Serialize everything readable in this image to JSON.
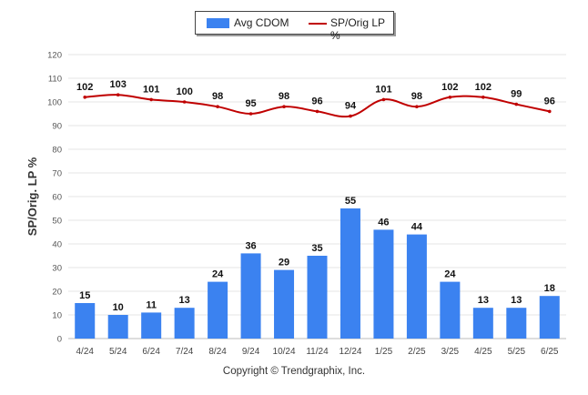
{
  "chart_data": {
    "type": "bar",
    "categories": [
      "4/24",
      "5/24",
      "6/24",
      "7/24",
      "8/24",
      "9/24",
      "10/24",
      "11/24",
      "12/24",
      "1/25",
      "2/25",
      "3/25",
      "4/25",
      "5/25",
      "6/25"
    ],
    "series": [
      {
        "name": "Avg CDOM",
        "type": "bar",
        "color": "#3b82f0",
        "values": [
          15,
          10,
          11,
          13,
          24,
          36,
          29,
          35,
          55,
          46,
          44,
          24,
          13,
          13,
          18
        ]
      },
      {
        "name": "SP/Orig LP %",
        "type": "line",
        "color": "#c00000",
        "values": [
          102,
          103,
          101,
          100,
          98,
          95,
          98,
          96,
          94,
          101,
          98,
          102,
          102,
          99,
          96
        ]
      }
    ],
    "ylabel": "SP/Orig. LP %",
    "ylim": [
      0,
      120
    ],
    "yticks": [
      0,
      10,
      20,
      30,
      40,
      50,
      60,
      70,
      80,
      90,
      100,
      110,
      120
    ],
    "grid": true,
    "legend_position": "top-center"
  },
  "footer": "Copyright © Trendgraphix, Inc."
}
